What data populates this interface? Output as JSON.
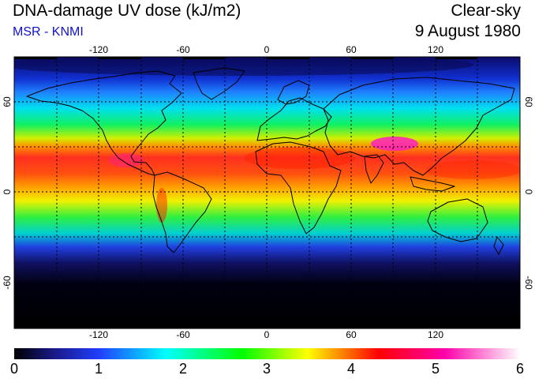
{
  "header": {
    "title": "DNA-damage UV dose (kJ/m2)",
    "source": "MSR - KNMI",
    "condition": "Clear-sky",
    "date": "9 August 1980"
  },
  "map": {
    "projection": "equirectangular",
    "lon_range": [
      -180,
      180
    ],
    "lat_range": [
      -90,
      90
    ],
    "lon_ticks": [
      "-120",
      "-60",
      "0",
      "60",
      "120"
    ],
    "lat_ticks": [
      "60",
      "0",
      "-60"
    ],
    "gridlines": "dotted, every 30 degrees",
    "features": [
      "coastlines"
    ]
  },
  "colorbar": {
    "min": 0,
    "max": 6,
    "labels": [
      "0",
      "1",
      "2",
      "3",
      "4",
      "5",
      "6"
    ],
    "colors": [
      "#000000",
      "#1a1a8a",
      "#2040ff",
      "#00ffff",
      "#00ff00",
      "#ffff00",
      "#ff0000",
      "#ff00aa",
      "#ffffff"
    ]
  }
}
